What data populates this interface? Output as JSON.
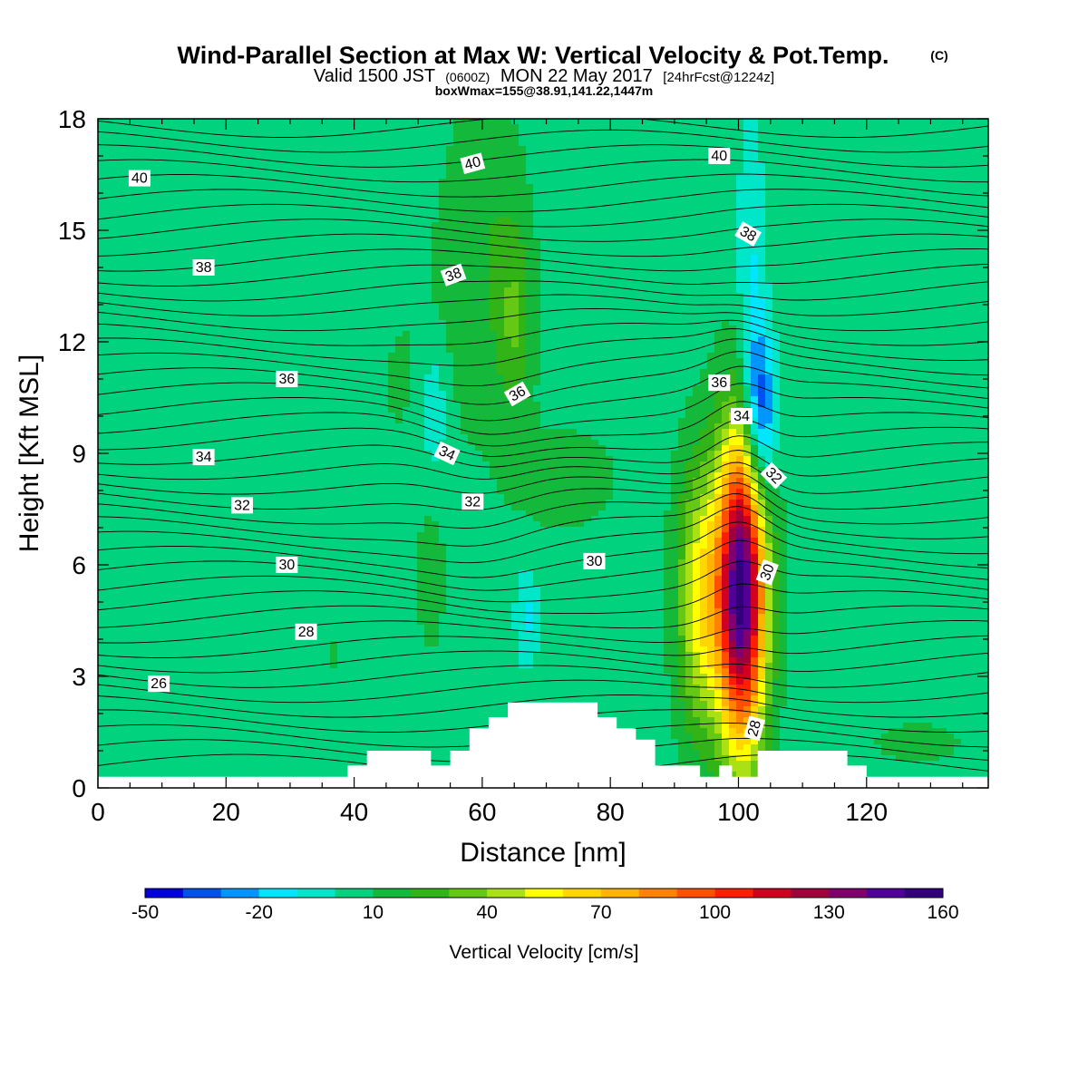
{
  "title": {
    "main": "Wind-Parallel Section at Max W: Vertical Velocity & Pot.Temp.",
    "copyright": "(C)",
    "valid_prefix": "Valid 1500 JST",
    "valid_utc": "(0600Z)",
    "valid_date": "MON 22 May 2017",
    "forecast": "[24hrFcst@1224z]",
    "boxinfo": "boxWmax=155@38.91,141.22,1447m"
  },
  "chart_data": {
    "type": "heatmap",
    "xlabel": "Distance [nm]",
    "ylabel": "Height [Kft MSL]",
    "xlim": [
      0,
      139
    ],
    "ylim": [
      0,
      18
    ],
    "x_ticks": [
      0,
      20,
      40,
      60,
      80,
      100,
      120
    ],
    "y_ticks": [
      0,
      3,
      6,
      9,
      12,
      15,
      18
    ],
    "colorbar": {
      "label": "Vertical Velocity [cm/s]",
      "min": -50,
      "max": 160,
      "step": 10,
      "tick_values": [
        -50,
        -20,
        10,
        40,
        70,
        100,
        130,
        160
      ],
      "colors": [
        "#0000e0",
        "#0050f0",
        "#0096ff",
        "#00e6ff",
        "#00e6c8",
        "#00d27d",
        "#14b93c",
        "#32b419",
        "#64c814",
        "#aae114",
        "#ffff00",
        "#ffd700",
        "#ffb400",
        "#ff8200",
        "#ff5000",
        "#ff1e00",
        "#d2001e",
        "#a0003c",
        "#80006e",
        "#500096",
        "#320078"
      ]
    },
    "contour_field": "Potential Temperature",
    "contour_levels": [
      26,
      28,
      30,
      32,
      34,
      36,
      38,
      40
    ],
    "contour_labels": [
      {
        "text": "40",
        "x": 6.5,
        "y": 16.4,
        "angle": 0
      },
      {
        "text": "38",
        "x": 16.5,
        "y": 14.0,
        "angle": 0
      },
      {
        "text": "36",
        "x": 29.5,
        "y": 11.0,
        "angle": 0
      },
      {
        "text": "34",
        "x": 16.5,
        "y": 8.9,
        "angle": 0
      },
      {
        "text": "32",
        "x": 22.5,
        "y": 7.6,
        "angle": 0
      },
      {
        "text": "30",
        "x": 29.5,
        "y": 6.0,
        "angle": 0
      },
      {
        "text": "28",
        "x": 32.5,
        "y": 4.2,
        "angle": 0
      },
      {
        "text": "26",
        "x": 9.5,
        "y": 2.8,
        "angle": 0
      },
      {
        "text": "40",
        "x": 58.5,
        "y": 16.8,
        "angle": -15
      },
      {
        "text": "38",
        "x": 55.5,
        "y": 13.8,
        "angle": -20
      },
      {
        "text": "36",
        "x": 65.5,
        "y": 10.6,
        "angle": -30
      },
      {
        "text": "34",
        "x": 54.5,
        "y": 9.0,
        "angle": 25
      },
      {
        "text": "32",
        "x": 58.5,
        "y": 7.7,
        "angle": 0
      },
      {
        "text": "30",
        "x": 77.5,
        "y": 6.1,
        "angle": 0
      },
      {
        "text": "40",
        "x": 97.0,
        "y": 17.0,
        "angle": 0
      },
      {
        "text": "38",
        "x": 101.5,
        "y": 14.9,
        "angle": 30
      },
      {
        "text": "36",
        "x": 97.0,
        "y": 10.9,
        "angle": 0
      },
      {
        "text": "34",
        "x": 100.5,
        "y": 10.0,
        "angle": 0
      },
      {
        "text": "32",
        "x": 105.5,
        "y": 8.4,
        "angle": 45
      },
      {
        "text": "30",
        "x": 104.5,
        "y": 5.8,
        "angle": -70
      },
      {
        "text": "28",
        "x": 102.5,
        "y": 1.6,
        "angle": -75
      }
    ],
    "terrain_top_kft": [
      [
        0,
        0.3
      ],
      [
        39,
        0.3
      ],
      [
        39,
        0.6
      ],
      [
        42,
        0.6
      ],
      [
        42,
        1.0
      ],
      [
        52,
        1.0
      ],
      [
        52,
        0.6
      ],
      [
        55,
        0.6
      ],
      [
        55,
        1.0
      ],
      [
        58,
        1.0
      ],
      [
        58,
        1.6
      ],
      [
        61,
        1.6
      ],
      [
        61,
        1.9
      ],
      [
        64,
        1.9
      ],
      [
        64,
        2.3
      ],
      [
        78,
        2.3
      ],
      [
        78,
        1.9
      ],
      [
        81,
        1.9
      ],
      [
        81,
        1.6
      ],
      [
        84,
        1.6
      ],
      [
        84,
        1.3
      ],
      [
        87,
        1.3
      ],
      [
        87,
        0.6
      ],
      [
        94,
        0.6
      ],
      [
        94,
        0.3
      ],
      [
        97,
        0.3
      ],
      [
        97,
        0.6
      ],
      [
        99,
        0.6
      ],
      [
        99,
        0.3
      ],
      [
        103,
        0.3
      ],
      [
        103,
        1.0
      ],
      [
        117,
        1.0
      ],
      [
        117,
        0.6
      ],
      [
        120,
        0.6
      ],
      [
        120,
        0.3
      ],
      [
        139,
        0.3
      ]
    ],
    "w_features": [
      {
        "x": 100.5,
        "y": 5.3,
        "rx": 3.8,
        "ry": 4.2,
        "peak": 155
      },
      {
        "x": 94.0,
        "y": 5.1,
        "rx": 3.6,
        "ry": 3.6,
        "peak": 55
      },
      {
        "x": 103.5,
        "y": 10.0,
        "rx": 2.4,
        "ry": 2.4,
        "peak": -45
      },
      {
        "x": 102.0,
        "y": 13.5,
        "rx": 2.2,
        "ry": 4.5,
        "peak": -12
      },
      {
        "x": 52.5,
        "y": 10.2,
        "rx": 2.2,
        "ry": 1.8,
        "peak": -12
      },
      {
        "x": 65.0,
        "y": 12.5,
        "rx": 2.8,
        "ry": 2.5,
        "peak": 26
      },
      {
        "x": 60.5,
        "y": 15.0,
        "rx": 6.5,
        "ry": 4.0,
        "peak": 18
      },
      {
        "x": 50.0,
        "y": 11.0,
        "rx": 12.0,
        "ry": 4.5,
        "peak": 10
      },
      {
        "x": 15.0,
        "y": 10.5,
        "rx": 22.0,
        "ry": 3.2,
        "peak": 10
      },
      {
        "x": 125.0,
        "y": 11.0,
        "rx": 20.0,
        "ry": 6.5,
        "peak": 10
      },
      {
        "x": 73.0,
        "y": 8.3,
        "rx": 10.0,
        "ry": 1.7,
        "peak": 14
      },
      {
        "x": 52.0,
        "y": 5.4,
        "rx": 2.0,
        "ry": 1.8,
        "peak": 16
      },
      {
        "x": 67.0,
        "y": 4.6,
        "rx": 1.8,
        "ry": 1.3,
        "peak": -12
      },
      {
        "x": 128.0,
        "y": 1.2,
        "rx": 12.0,
        "ry": 0.9,
        "peak": 11
      },
      {
        "x": 25.0,
        "y": 0.9,
        "rx": 10.0,
        "ry": 0.8,
        "peak": 10
      },
      {
        "x": 37.0,
        "y": 3.5,
        "rx": 5.0,
        "ry": 2.5,
        "peak": 10
      }
    ]
  }
}
